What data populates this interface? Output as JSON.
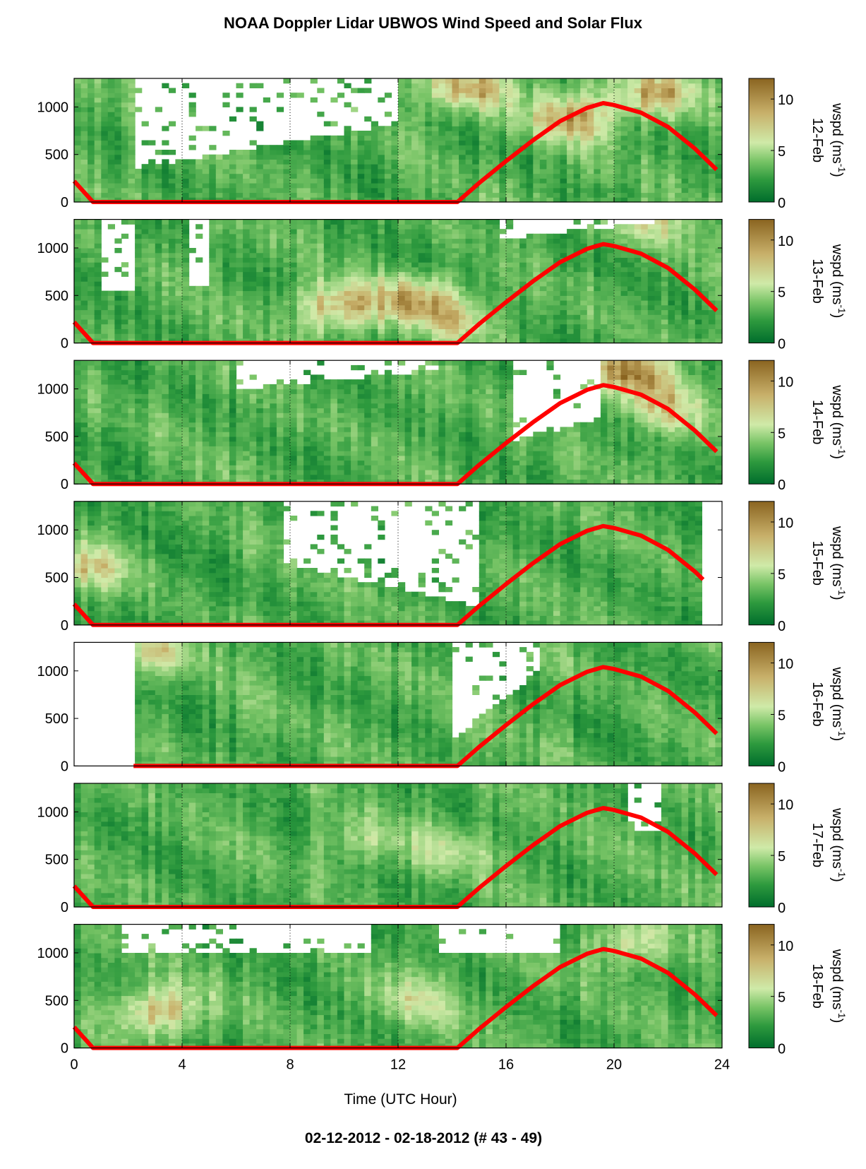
{
  "title": "NOAA Doppler Lidar UBWOS Wind Speed and Solar Flux",
  "footer": "02-12-2012 - 02-18-2012   (# 43 - 49)",
  "colors": {
    "solar_curve": "#ff0000",
    "colormap": [
      "#006d2c",
      "#2e9a3e",
      "#78c466",
      "#cfeaa8",
      "#c8b06a",
      "#8a6420"
    ]
  },
  "chart_data": {
    "type": "heatmap",
    "xlabel": "Time (UTC Hour)",
    "x_ticks": [
      "0",
      "4",
      "8",
      "12",
      "16",
      "20",
      "24"
    ],
    "xlim": [
      0,
      24
    ],
    "y_ticks": [
      "0",
      "500",
      "1000"
    ],
    "ylim": [
      0,
      1300
    ],
    "colorbar": {
      "label": "wspd (ms",
      "label_sup": "-1",
      "label_close": ")",
      "ticks": [
        "0",
        "5",
        "10"
      ],
      "range": [
        0,
        12
      ]
    },
    "grid": "dotted vertical lines at x=4, 8, 12, 16, 20",
    "panels": [
      {
        "day": "12-Feb",
        "data_start": 0.0,
        "data_end": 24.0,
        "solar_start": 0,
        "solar_end": 23.8,
        "gaps": [
          [
            2.3,
            12.1,
            1300,
            360,
            830
          ],
          [
            14.2,
            24,
            1300,
            1300,
            1300
          ]
        ],
        "hot_spots": [
          [
            14.5,
            1200,
            9
          ],
          [
            18.5,
            900,
            9
          ],
          [
            21.5,
            1150,
            9
          ]
        ]
      },
      {
        "day": "13-Feb",
        "data_start": 0.0,
        "data_end": 24.0,
        "solar_start": 0,
        "solar_end": 23.8,
        "gaps": [
          [
            1.0,
            2.3,
            1300,
            540,
            540
          ],
          [
            4.3,
            5.0,
            1300,
            580,
            580
          ],
          [
            15.8,
            22.5,
            1300,
            1100,
            1300
          ]
        ],
        "hot_spots": [
          [
            9.7,
            380,
            9
          ],
          [
            12.6,
            470,
            9
          ],
          [
            14.3,
            250,
            7
          ],
          [
            21.5,
            1300,
            7
          ]
        ]
      },
      {
        "day": "14-Feb",
        "data_start": 0.0,
        "data_end": 24.0,
        "solar_start": 0,
        "solar_end": 23.8,
        "gaps": [
          [
            6.1,
            13.5,
            1300,
            1000,
            1200
          ],
          [
            16.3,
            19.5,
            1300,
            450,
            700
          ]
        ],
        "hot_spots": [
          [
            20.6,
            1200,
            10
          ],
          [
            22.0,
            800,
            7
          ]
        ]
      },
      {
        "day": "15-Feb",
        "data_start": 0.0,
        "data_end": 23.3,
        "solar_start": 0,
        "solar_end": 23.3,
        "gaps": [
          [
            7.8,
            15.0,
            1300,
            650,
            200
          ]
        ],
        "hot_spots": [
          [
            0.4,
            600,
            8
          ]
        ]
      },
      {
        "day": "16-Feb",
        "data_start": 2.2,
        "data_end": 24.0,
        "solar_start": 2.2,
        "solar_end": 23.8,
        "gaps": [
          [
            14.1,
            17.2,
            1300,
            300,
            1000
          ]
        ],
        "hot_spots": [
          [
            3.0,
            1200,
            7
          ]
        ]
      },
      {
        "day": "17-Feb",
        "data_start": 0.0,
        "data_end": 24.0,
        "solar_start": 0,
        "solar_end": 23.8,
        "gaps": [
          [
            20.6,
            21.8,
            1300,
            800,
            800
          ]
        ],
        "hot_spots": [
          [
            10.5,
            700,
            6
          ],
          [
            14.0,
            600,
            6
          ]
        ]
      },
      {
        "day": "18-Feb",
        "data_start": 0.0,
        "data_end": 24.0,
        "solar_start": 0,
        "solar_end": 23.8,
        "gaps": [
          [
            1.8,
            11.0,
            1300,
            1000,
            1000
          ],
          [
            13.5,
            18.0,
            1300,
            1000,
            1000
          ]
        ],
        "hot_spots": [
          [
            3.2,
            400,
            9
          ],
          [
            20.5,
            1100,
            7
          ],
          [
            12.5,
            500,
            6
          ]
        ]
      }
    ],
    "solar_flux_series": {
      "name": "",
      "x": [
        0,
        0.7,
        14.2,
        15,
        16,
        17,
        18,
        19,
        19.6,
        20,
        21,
        22,
        23,
        23.8
      ],
      "y": [
        220,
        0,
        0,
        200,
        430,
        650,
        850,
        990,
        1040,
        1020,
        940,
        790,
        560,
        340
      ]
    }
  }
}
